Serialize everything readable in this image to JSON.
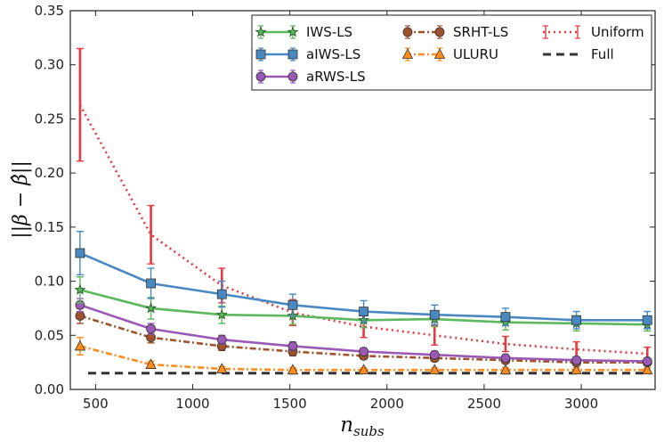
{
  "chart_data": {
    "type": "line",
    "title": "",
    "xlabel": "n_subs",
    "ylabel": "||β − β̂||",
    "xlim": [
      370,
      3380
    ],
    "ylim": [
      0.0,
      0.35
    ],
    "xticks": [
      500,
      1000,
      1500,
      2000,
      2500,
      3000
    ],
    "xtick_labels": [
      "500",
      "1000",
      "1500",
      "2000",
      "2500",
      "3000"
    ],
    "yticks": [
      0.0,
      0.05,
      0.1,
      0.15,
      0.2,
      0.25,
      0.3,
      0.35
    ],
    "ytick_labels": [
      "0.00",
      "0.05",
      "0.10",
      "0.15",
      "0.20",
      "0.25",
      "0.30",
      "0.35"
    ],
    "legend_position": "top-right",
    "x": [
      420,
      785,
      1150,
      1515,
      1880,
      2245,
      2610,
      2975,
      3340
    ],
    "series": [
      {
        "name": "IWS-LS",
        "color": "#5cb85c",
        "marker": "star",
        "dash": "solid",
        "values": [
          0.092,
          0.075,
          0.069,
          0.068,
          0.064,
          0.065,
          0.062,
          0.061,
          0.06
        ],
        "errors": [
          0.012,
          0.01,
          0.008,
          0.008,
          0.007,
          0.007,
          0.007,
          0.007,
          0.006
        ]
      },
      {
        "name": "aIWS-LS",
        "color": "#4a88c1",
        "marker": "square",
        "dash": "solid",
        "values": [
          0.126,
          0.098,
          0.088,
          0.078,
          0.072,
          0.069,
          0.067,
          0.064,
          0.064
        ],
        "errors": [
          0.02,
          0.014,
          0.012,
          0.01,
          0.01,
          0.009,
          0.008,
          0.008,
          0.008
        ]
      },
      {
        "name": "aRWS-LS",
        "color": "#9b59b6",
        "marker": "circle",
        "dash": "solid",
        "values": [
          0.078,
          0.056,
          0.046,
          0.04,
          0.035,
          0.032,
          0.029,
          0.027,
          0.026
        ],
        "errors": [
          0.006,
          0.005,
          0.004,
          0.004,
          0.003,
          0.003,
          0.003,
          0.003,
          0.003
        ]
      },
      {
        "name": "SRHT-LS",
        "color": "#a0522d",
        "marker": "circle",
        "dash": "dashdot",
        "values": [
          0.068,
          0.048,
          0.04,
          0.035,
          0.031,
          0.029,
          0.027,
          0.025,
          0.025
        ],
        "errors": [
          0.007,
          0.005,
          0.004,
          0.004,
          0.003,
          0.003,
          0.003,
          0.003,
          0.003
        ]
      },
      {
        "name": "ULURU",
        "color": "#ff8c1a",
        "marker": "triangle",
        "dash": "dashdot",
        "values": [
          0.04,
          0.023,
          0.019,
          0.018,
          0.018,
          0.018,
          0.018,
          0.018,
          0.018
        ],
        "errors": [
          0.008,
          0.003,
          0.002,
          0.002,
          0.002,
          0.002,
          0.002,
          0.002,
          0.002
        ]
      },
      {
        "name": "Uniform",
        "color": "#e8383d",
        "marker": "none",
        "dash": "dotted",
        "values": [
          0.263,
          0.143,
          0.096,
          0.071,
          0.058,
          0.05,
          0.042,
          0.037,
          0.033
        ],
        "errors": [
          0.052,
          0.027,
          0.016,
          0.012,
          0.01,
          0.009,
          0.007,
          0.007,
          0.006
        ]
      },
      {
        "name": "Full",
        "color": "#333333",
        "marker": "none",
        "dash": "dashed",
        "values": [
          0.015,
          0.015,
          0.015,
          0.015,
          0.015,
          0.015,
          0.015,
          0.015,
          0.015
        ],
        "errors": [
          0,
          0,
          0,
          0,
          0,
          0,
          0,
          0,
          0
        ]
      }
    ]
  }
}
